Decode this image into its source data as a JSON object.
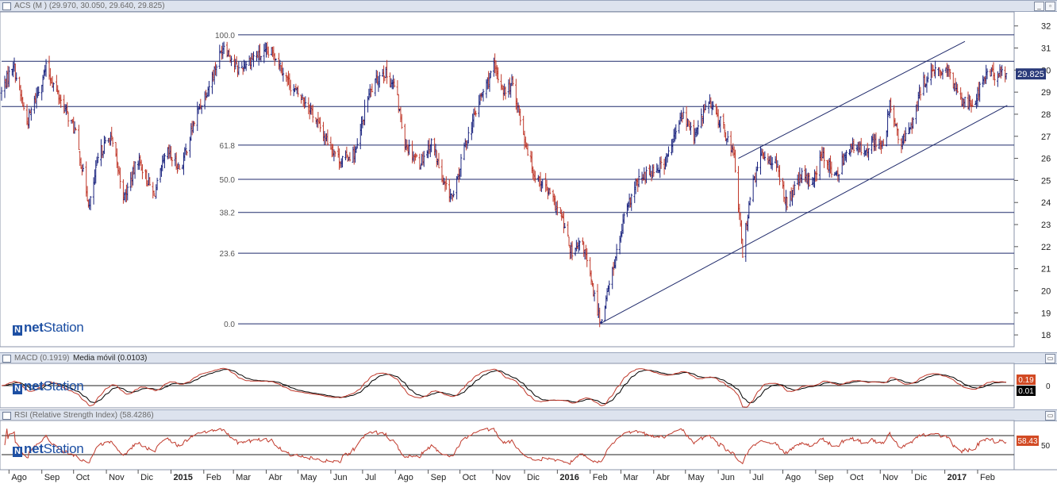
{
  "panels": {
    "main": {
      "title": "ACS (M )  (29.970, 30.050, 29.640, 29.825)"
    },
    "macd": {
      "title": "MACD (0.1919)",
      "subtitle": "Media móvil (0.0103)"
    },
    "rsi": {
      "title": "RSI (Relative Strength Index) (58.4286)"
    }
  },
  "buttons": {
    "minimize": "_",
    "maximize": "▫",
    "restore": "▭"
  },
  "logo": {
    "mark": "N",
    "bold": "net",
    "rest": "Station"
  },
  "colors": {
    "up": "#1a237e",
    "down": "#c0392b",
    "axis_badge": "#2a3a7a",
    "macd_badge": "#d24a24",
    "macd_signal_badge": "#000000",
    "rsi_badge": "#d24a24",
    "grid": "#1f2a6b"
  },
  "chart_data": [
    {
      "type": "candlestick",
      "title": "ACS (M )",
      "ohlc_last": {
        "open": 29.97,
        "high": 30.05,
        "low": 29.64,
        "close": 29.825
      },
      "ylim": [
        17.5,
        32.6
      ],
      "y_ticks": [
        18,
        19,
        20,
        21,
        22,
        23,
        24,
        25,
        26,
        27,
        28,
        29,
        30,
        31,
        32
      ],
      "last_price_label": "29.825",
      "fibonacci": [
        {
          "label": "100.0",
          "value": 31.6
        },
        {
          "label": "61.8",
          "value": 26.6
        },
        {
          "label": "50.0",
          "value": 25.05
        },
        {
          "label": "38.2",
          "value": 23.55
        },
        {
          "label": "23.6",
          "value": 21.7
        },
        {
          "label": "0.0",
          "value": 18.5
        }
      ],
      "horizontal_lines": [
        30.4,
        28.35
      ],
      "trend_lines": [
        {
          "from": [
            "2016-02-10",
            18.5
          ],
          "to": [
            "2017-03-01",
            28.4
          ]
        },
        {
          "from": [
            "2016-06-20",
            26.0
          ],
          "to": [
            "2017-01-20",
            31.3
          ]
        }
      ],
      "price_path": [
        [
          "2014-07-25",
          29.0
        ],
        [
          "2014-08-05",
          30.3
        ],
        [
          "2014-08-18",
          27.6
        ],
        [
          "2014-09-05",
          30.1
        ],
        [
          "2014-09-20",
          28.5
        ],
        [
          "2014-10-02",
          27.3
        ],
        [
          "2014-10-10",
          25.3
        ],
        [
          "2014-10-16",
          23.8
        ],
        [
          "2014-10-25",
          26.2
        ],
        [
          "2014-11-05",
          27.0
        ],
        [
          "2014-11-18",
          24.2
        ],
        [
          "2014-12-01",
          26.0
        ],
        [
          "2014-12-16",
          24.3
        ],
        [
          "2014-12-28",
          26.3
        ],
        [
          "2015-01-10",
          25.5
        ],
        [
          "2015-01-25",
          28.0
        ],
        [
          "2015-02-05",
          29.2
        ],
        [
          "2015-02-20",
          31.2
        ],
        [
          "2015-03-05",
          30.0
        ],
        [
          "2015-03-20",
          30.6
        ],
        [
          "2015-04-08",
          30.8
        ],
        [
          "2015-04-25",
          29.2
        ],
        [
          "2015-05-10",
          28.5
        ],
        [
          "2015-05-25",
          27.1
        ],
        [
          "2015-06-10",
          25.9
        ],
        [
          "2015-06-25",
          26.3
        ],
        [
          "2015-07-06",
          28.8
        ],
        [
          "2015-07-20",
          30.0
        ],
        [
          "2015-08-01",
          29.2
        ],
        [
          "2015-08-10",
          26.7
        ],
        [
          "2015-08-24",
          25.8
        ],
        [
          "2015-09-05",
          26.8
        ],
        [
          "2015-09-15",
          24.8
        ],
        [
          "2015-09-25",
          24.2
        ],
        [
          "2015-10-05",
          26.5
        ],
        [
          "2015-10-20",
          28.7
        ],
        [
          "2015-11-02",
          30.1
        ],
        [
          "2015-11-12",
          29.0
        ],
        [
          "2015-11-20",
          29.4
        ],
        [
          "2015-12-02",
          26.7
        ],
        [
          "2015-12-10",
          25.3
        ],
        [
          "2015-12-20",
          24.8
        ],
        [
          "2016-01-05",
          23.3
        ],
        [
          "2016-01-15",
          21.6
        ],
        [
          "2016-01-25",
          22.2
        ],
        [
          "2016-02-05",
          19.7
        ],
        [
          "2016-02-11",
          18.6
        ],
        [
          "2016-02-25",
          21.5
        ],
        [
          "2016-03-05",
          23.4
        ],
        [
          "2016-03-15",
          24.8
        ],
        [
          "2016-03-28",
          25.4
        ],
        [
          "2016-04-12",
          25.8
        ],
        [
          "2016-04-28",
          28.0
        ],
        [
          "2016-05-10",
          27.0
        ],
        [
          "2016-05-22",
          28.6
        ],
        [
          "2016-06-05",
          27.5
        ],
        [
          "2016-06-16",
          26.1
        ],
        [
          "2016-06-24",
          21.7
        ],
        [
          "2016-07-01",
          24.3
        ],
        [
          "2016-07-12",
          26.2
        ],
        [
          "2016-07-25",
          25.8
        ],
        [
          "2016-08-05",
          23.9
        ],
        [
          "2016-08-18",
          25.2
        ],
        [
          "2016-08-28",
          24.9
        ],
        [
          "2016-09-08",
          26.2
        ],
        [
          "2016-09-20",
          25.1
        ],
        [
          "2016-10-01",
          26.5
        ],
        [
          "2016-10-15",
          26.4
        ],
        [
          "2016-10-28",
          26.8
        ],
        [
          "2016-11-05",
          26.4
        ],
        [
          "2016-11-10",
          28.6
        ],
        [
          "2016-11-20",
          26.5
        ],
        [
          "2016-12-01",
          27.6
        ],
        [
          "2016-12-12",
          29.5
        ],
        [
          "2016-12-25",
          30.0
        ],
        [
          "2017-01-05",
          29.8
        ],
        [
          "2017-01-18",
          28.6
        ],
        [
          "2017-01-28",
          28.5
        ],
        [
          "2017-02-10",
          29.9
        ],
        [
          "2017-02-17",
          29.8
        ]
      ]
    },
    {
      "type": "line",
      "title": "MACD",
      "series": [
        {
          "name": "MACD",
          "last": 0.1919
        },
        {
          "name": "Media móvil",
          "last": 0.0103
        }
      ],
      "y_ticks": [
        0
      ],
      "value_labels": [
        "0.19",
        "0.01"
      ]
    },
    {
      "type": "line",
      "title": "RSI (Relative Strength Index)",
      "series": [
        {
          "name": "RSI",
          "last": 58.4286
        }
      ],
      "y_ticks": [
        50
      ],
      "reference_levels": [
        70,
        30
      ],
      "value_label": "58.43"
    }
  ],
  "x_axis": {
    "ticks": [
      [
        "2014-08-01",
        "Ago"
      ],
      [
        "2014-09-01",
        "Sep"
      ],
      [
        "2014-10-01",
        "Oct"
      ],
      [
        "2014-11-01",
        "Nov"
      ],
      [
        "2014-12-01",
        "Dic"
      ],
      [
        "2015-01-01",
        "2015"
      ],
      [
        "2015-02-01",
        "Feb"
      ],
      [
        "2015-03-01",
        "Mar"
      ],
      [
        "2015-04-01",
        "Abr"
      ],
      [
        "2015-05-01",
        "May"
      ],
      [
        "2015-06-01",
        "Jun"
      ],
      [
        "2015-07-01",
        "Jul"
      ],
      [
        "2015-08-01",
        "Ago"
      ],
      [
        "2015-09-01",
        "Sep"
      ],
      [
        "2015-10-01",
        "Oct"
      ],
      [
        "2015-11-01",
        "Nov"
      ],
      [
        "2015-12-01",
        "Dic"
      ],
      [
        "2016-01-01",
        "2016"
      ],
      [
        "2016-02-01",
        "Feb"
      ],
      [
        "2016-03-01",
        "Mar"
      ],
      [
        "2016-04-01",
        "Abr"
      ],
      [
        "2016-05-01",
        "May"
      ],
      [
        "2016-06-01",
        "Jun"
      ],
      [
        "2016-07-01",
        "Jul"
      ],
      [
        "2016-08-01",
        "Ago"
      ],
      [
        "2016-09-01",
        "Sep"
      ],
      [
        "2016-10-01",
        "Oct"
      ],
      [
        "2016-11-01",
        "Nov"
      ],
      [
        "2016-12-01",
        "Dic"
      ],
      [
        "2017-01-01",
        "2017"
      ],
      [
        "2017-02-01",
        "Feb"
      ]
    ]
  }
}
